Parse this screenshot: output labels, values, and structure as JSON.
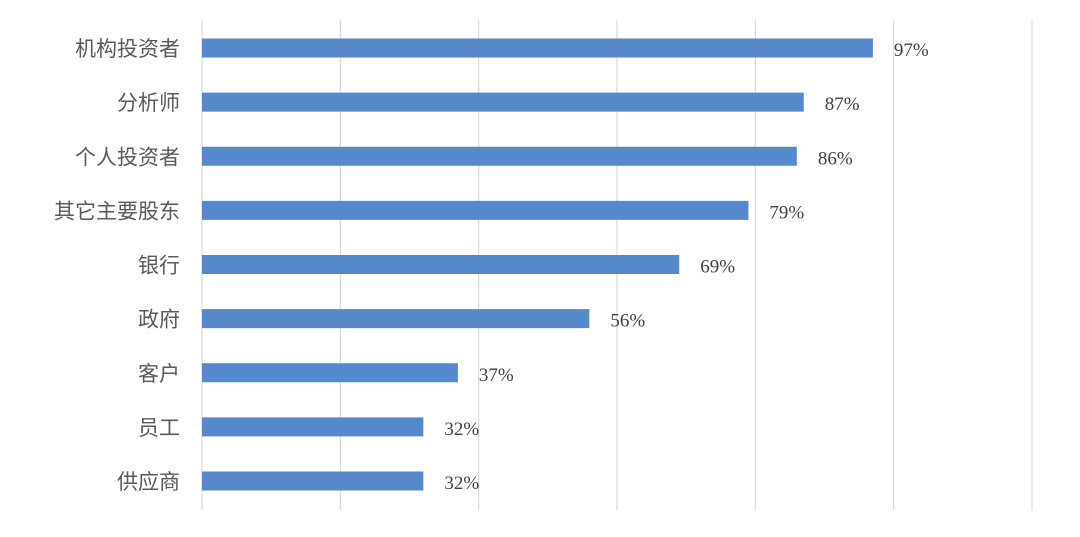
{
  "chart_data": {
    "type": "bar",
    "orientation": "horizontal",
    "categories": [
      "机构投资者",
      "分析师",
      "个人投资者",
      "其它主要股东",
      "银行",
      "政府",
      "客户",
      "员工",
      "供应商"
    ],
    "values": [
      97,
      87,
      86,
      79,
      69,
      56,
      37,
      32,
      32
    ],
    "data_labels": [
      "97%",
      "87%",
      "86%",
      "79%",
      "69%",
      "56%",
      "37%",
      "32%",
      "32%"
    ],
    "xlim": [
      0,
      120
    ],
    "grid": true,
    "gridline_step": 20,
    "axis_tick_labels_shown": false,
    "colors": {
      "bar": "#5589cb",
      "grid": "#d9d9d9"
    }
  }
}
